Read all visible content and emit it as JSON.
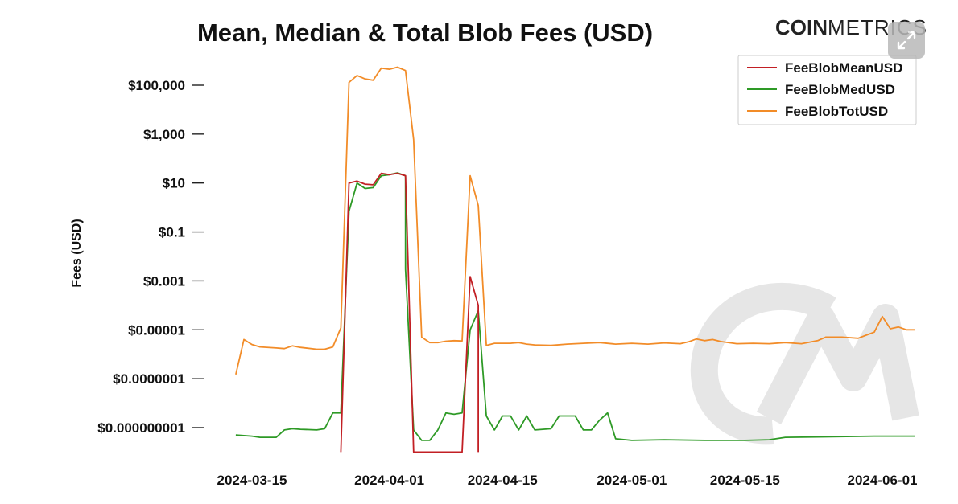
{
  "brand": {
    "logo_bold": "COIN",
    "logo_light": "METRICS",
    "watermark_text": "CM"
  },
  "controls": {
    "expand_icon": "expand-arrows-icon"
  },
  "chart_data": {
    "type": "line",
    "title": "Mean, Median & Total Blob Fees (USD)",
    "xlabel": "",
    "ylabel": "Fees (USD)",
    "yscale": "log",
    "ylim": [
      1e-10,
      1000000.0
    ],
    "xlim": [
      "2024-03-12",
      "2024-06-02"
    ],
    "grid": false,
    "legend_position": "top-right",
    "y_ticks": [
      {
        "value": 100000,
        "label": "$100,000"
      },
      {
        "value": 1000,
        "label": "$1,000"
      },
      {
        "value": 10,
        "label": "$10"
      },
      {
        "value": 0.1,
        "label": "$0.1"
      },
      {
        "value": 0.001,
        "label": "$0.001"
      },
      {
        "value": 1e-05,
        "label": "$0.00001"
      },
      {
        "value": 1e-07,
        "label": "$0.0000001"
      },
      {
        "value": 1e-09,
        "label": "$0.000000001"
      }
    ],
    "x_ticks": [
      "2024-03-15",
      "2024-04-01",
      "2024-04-15",
      "2024-05-01",
      "2024-05-15",
      "2024-06-01"
    ],
    "series": [
      {
        "name": "FeeBlobTotUSD",
        "color": "#f28c28",
        "points": [
          [
            "2024-03-13",
            1.5e-07
          ],
          [
            "2024-03-14",
            4e-06
          ],
          [
            "2024-03-15",
            2.5e-06
          ],
          [
            "2024-03-16",
            2e-06
          ],
          [
            "2024-03-18",
            1.8e-06
          ],
          [
            "2024-03-19",
            1.7e-06
          ],
          [
            "2024-03-20",
            2.2e-06
          ],
          [
            "2024-03-21",
            1.9e-06
          ],
          [
            "2024-03-23",
            1.6e-06
          ],
          [
            "2024-03-24",
            1.6e-06
          ],
          [
            "2024-03-25",
            2e-06
          ],
          [
            "2024-03-26",
            1.2e-05
          ],
          [
            "2024-03-27",
            130000
          ],
          [
            "2024-03-28",
            250000
          ],
          [
            "2024-03-29",
            180000
          ],
          [
            "2024-03-30",
            160000
          ],
          [
            "2024-03-31",
            500000
          ],
          [
            "2024-04-01",
            450000
          ],
          [
            "2024-04-02",
            550000
          ],
          [
            "2024-04-03",
            400000
          ],
          [
            "2024-04-04",
            600
          ],
          [
            "2024-04-05",
            5e-06
          ],
          [
            "2024-04-06",
            3e-06
          ],
          [
            "2024-04-07",
            3e-06
          ],
          [
            "2024-04-08",
            3.4e-06
          ],
          [
            "2024-04-09",
            3.6e-06
          ],
          [
            "2024-04-10",
            3.5e-06
          ],
          [
            "2024-04-11",
            20
          ],
          [
            "2024-04-12",
            1.2
          ],
          [
            "2024-04-13",
            2.3e-06
          ],
          [
            "2024-04-14",
            2.8e-06
          ],
          [
            "2024-04-16",
            2.8e-06
          ],
          [
            "2024-04-17",
            3e-06
          ],
          [
            "2024-04-18",
            2.6e-06
          ],
          [
            "2024-04-19",
            2.4e-06
          ],
          [
            "2024-04-21",
            2.3e-06
          ],
          [
            "2024-04-23",
            2.6e-06
          ],
          [
            "2024-04-25",
            2.8e-06
          ],
          [
            "2024-04-27",
            3e-06
          ],
          [
            "2024-04-29",
            2.6e-06
          ],
          [
            "2024-05-01",
            2.8e-06
          ],
          [
            "2024-05-03",
            2.6e-06
          ],
          [
            "2024-05-05",
            2.9e-06
          ],
          [
            "2024-05-07",
            2.7e-06
          ],
          [
            "2024-05-08",
            3.2e-06
          ],
          [
            "2024-05-09",
            4.2e-06
          ],
          [
            "2024-05-10",
            3.6e-06
          ],
          [
            "2024-05-11",
            4e-06
          ],
          [
            "2024-05-12",
            3.3e-06
          ],
          [
            "2024-05-14",
            2.7e-06
          ],
          [
            "2024-05-16",
            2.8e-06
          ],
          [
            "2024-05-18",
            2.7e-06
          ],
          [
            "2024-05-20",
            3e-06
          ],
          [
            "2024-05-22",
            2.7e-06
          ],
          [
            "2024-05-24",
            3.6e-06
          ],
          [
            "2024-05-25",
            5e-06
          ],
          [
            "2024-05-27",
            5e-06
          ],
          [
            "2024-05-29",
            4.5e-06
          ],
          [
            "2024-05-30",
            6e-06
          ],
          [
            "2024-05-31",
            8e-06
          ],
          [
            "2024-06-01",
            3.5e-05
          ],
          [
            "2024-06-02",
            1.1e-05
          ],
          [
            "2024-06-03",
            1.3e-05
          ],
          [
            "2024-06-04",
            1e-05
          ],
          [
            "2024-06-05",
            1e-05
          ]
        ]
      },
      {
        "name": "FeeBlobMedUSD",
        "color": "#2e9a26",
        "points": [
          [
            "2024-03-13",
            5e-10
          ],
          [
            "2024-03-15",
            4.5e-10
          ],
          [
            "2024-03-16",
            4e-10
          ],
          [
            "2024-03-18",
            4e-10
          ],
          [
            "2024-03-19",
            8e-10
          ],
          [
            "2024-03-20",
            9e-10
          ],
          [
            "2024-03-21",
            8.5e-10
          ],
          [
            "2024-03-23",
            8e-10
          ],
          [
            "2024-03-24",
            9e-10
          ],
          [
            "2024-03-25",
            4e-09
          ],
          [
            "2024-03-26",
            4e-09
          ],
          [
            "2024-03-27",
            0.7
          ],
          [
            "2024-03-28",
            10
          ],
          [
            "2024-03-29",
            6
          ],
          [
            "2024-03-30",
            6.5
          ],
          [
            "2024-03-31",
            20
          ],
          [
            "2024-04-01",
            22
          ],
          [
            "2024-04-02",
            26
          ],
          [
            "2024-04-03",
            20
          ],
          [
            "2024-04-03",
            0.003
          ],
          [
            "2024-04-04",
            8e-10
          ],
          [
            "2024-04-05",
            3e-10
          ],
          [
            "2024-04-06",
            3e-10
          ],
          [
            "2024-04-07",
            8e-10
          ],
          [
            "2024-04-08",
            4e-09
          ],
          [
            "2024-04-09",
            3.5e-09
          ],
          [
            "2024-04-10",
            4e-09
          ],
          [
            "2024-04-11",
            1e-05
          ],
          [
            "2024-04-12",
            6e-05
          ],
          [
            "2024-04-13",
            3e-09
          ],
          [
            "2024-04-14",
            8e-10
          ],
          [
            "2024-04-15",
            3e-09
          ],
          [
            "2024-04-16",
            3e-09
          ],
          [
            "2024-04-17",
            8e-10
          ],
          [
            "2024-04-18",
            3e-09
          ],
          [
            "2024-04-19",
            8e-10
          ],
          [
            "2024-04-21",
            9e-10
          ],
          [
            "2024-04-22",
            3e-09
          ],
          [
            "2024-04-24",
            3e-09
          ],
          [
            "2024-04-25",
            8e-10
          ],
          [
            "2024-04-26",
            8e-10
          ],
          [
            "2024-04-27",
            2e-09
          ],
          [
            "2024-04-28",
            4e-09
          ],
          [
            "2024-04-29",
            3.5e-10
          ],
          [
            "2024-05-01",
            3e-10
          ],
          [
            "2024-05-05",
            3.2e-10
          ],
          [
            "2024-05-10",
            3e-10
          ],
          [
            "2024-05-15",
            3e-10
          ],
          [
            "2024-05-18",
            3.2e-10
          ],
          [
            "2024-05-20",
            4e-10
          ],
          [
            "2024-05-25",
            4.2e-10
          ],
          [
            "2024-05-31",
            4.5e-10
          ],
          [
            "2024-06-05",
            4.5e-10
          ]
        ]
      },
      {
        "name": "FeeBlobMeanUSD",
        "color": "#c21f24",
        "points": [
          [
            "2024-03-26",
            1e-10
          ],
          [
            "2024-03-27",
            10
          ],
          [
            "2024-03-28",
            12
          ],
          [
            "2024-03-29",
            9
          ],
          [
            "2024-03-30",
            8.5
          ],
          [
            "2024-03-31",
            25
          ],
          [
            "2024-04-01",
            22
          ],
          [
            "2024-04-02",
            25
          ],
          [
            "2024-04-03",
            20
          ],
          [
            "2024-04-04",
            1e-10
          ],
          [
            "2024-04-10",
            1e-10
          ],
          [
            "2024-04-11",
            0.0015
          ],
          [
            "2024-04-12",
            0.0001
          ],
          [
            "2024-04-12",
            1e-10
          ]
        ]
      }
    ]
  }
}
